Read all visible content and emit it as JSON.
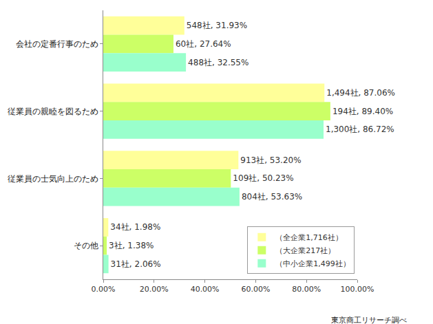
{
  "chart_data": {
    "type": "bar",
    "orientation": "horizontal",
    "categories": [
      "会社の定番行事のため",
      "従業員の親睦を図るため",
      "従業員の士気向上のため",
      "その他"
    ],
    "series": [
      {
        "name": "（全企業1,716社）",
        "color": "#ffff99",
        "values": [
          31.93,
          87.06,
          53.2,
          1.98
        ],
        "value_labels": [
          "548社, 31.93%",
          "1,494社, 87.06%",
          "913社, 53.20%",
          "34社, 1.98%"
        ]
      },
      {
        "name": "（大企業217社）",
        "color": "#ccff66",
        "values": [
          27.64,
          89.4,
          50.23,
          1.38
        ],
        "value_labels": [
          "60社, 27.64%",
          "194社, 89.40%",
          "109社, 50.23%",
          "3社, 1.38%"
        ]
      },
      {
        "name": "（中小企業1,499社）",
        "color": "#99ffcc",
        "values": [
          32.55,
          86.72,
          53.63,
          2.06
        ],
        "value_labels": [
          "488社, 32.55%",
          "1,300社, 86.72%",
          "804社, 53.63%",
          "31社, 2.06%"
        ]
      }
    ],
    "xlim": [
      0,
      100
    ],
    "xticks": [
      {
        "value": 0,
        "label": "0.00%"
      },
      {
        "value": 20,
        "label": "20.00%"
      },
      {
        "value": 40,
        "label": "40.00%"
      },
      {
        "value": 60,
        "label": "60.00%"
      },
      {
        "value": 80,
        "label": "80.00%"
      },
      {
        "value": 100,
        "label": "100.00%"
      }
    ],
    "grid": false,
    "legend": "lower right",
    "data_labels": true,
    "source": "東京商工リサーチ調べ"
  }
}
